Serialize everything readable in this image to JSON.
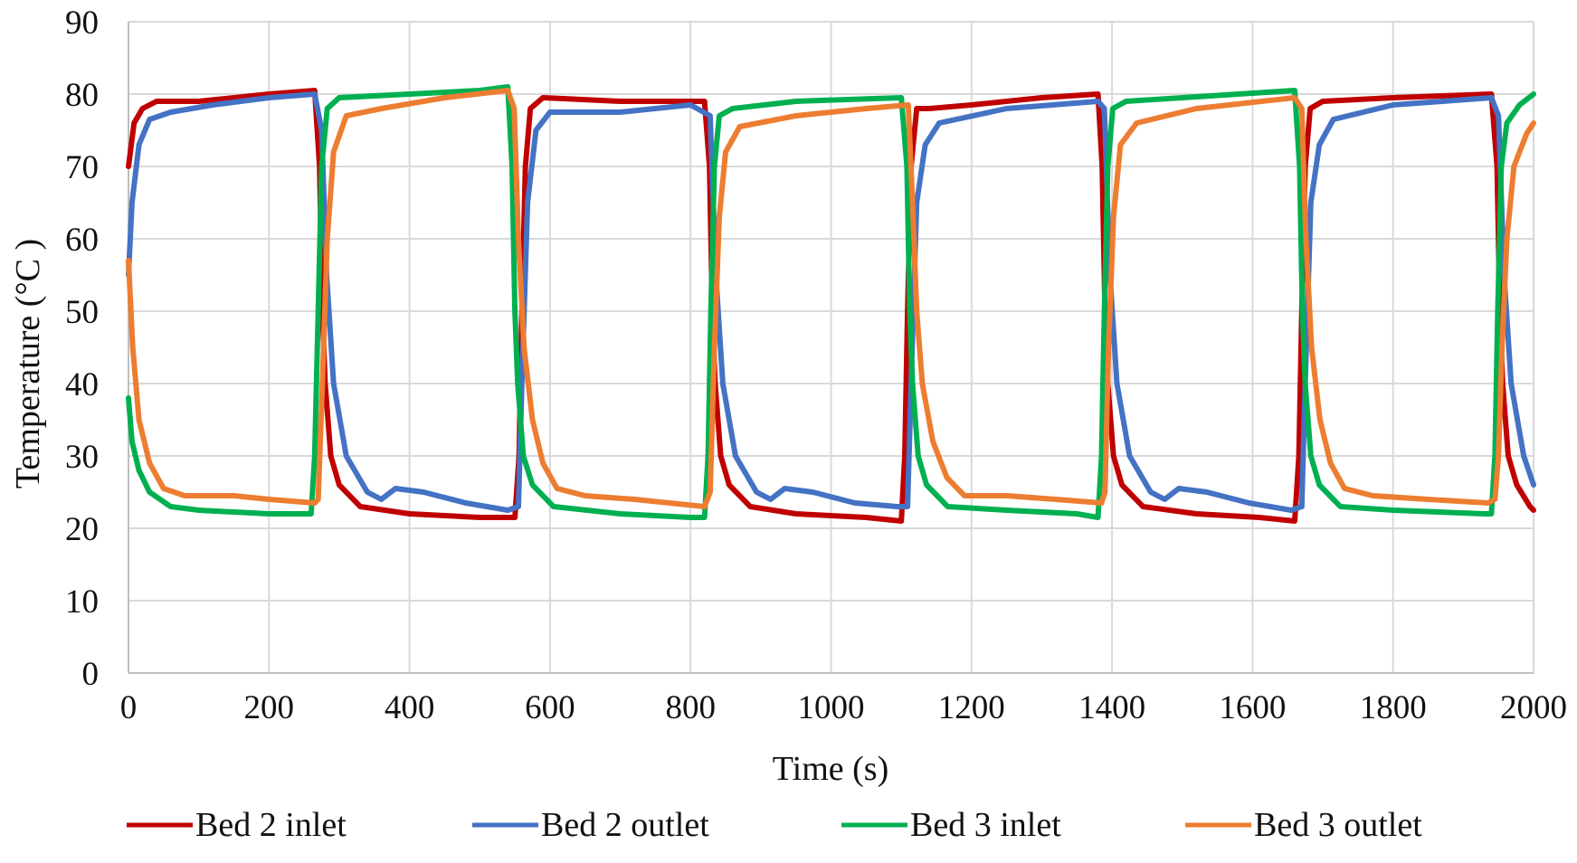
{
  "chart_data": {
    "type": "line",
    "title": "",
    "xlabel": "Time (s)",
    "ylabel": "Temperature  (°C )",
    "xlim": [
      0,
      2000
    ],
    "ylim": [
      0,
      90
    ],
    "xticks": [
      0,
      200,
      400,
      600,
      800,
      1000,
      1200,
      1400,
      1600,
      1800,
      2000
    ],
    "yticks": [
      0,
      10,
      20,
      30,
      40,
      50,
      60,
      70,
      80,
      90
    ],
    "grid": true,
    "legend_position": "bottom",
    "period_s": 279,
    "switch_times_s": [
      0,
      279,
      558,
      837,
      1116,
      1395,
      1674,
      1953
    ],
    "series": [
      {
        "name": "Bed 2 inlet",
        "color": "#C00000",
        "values": [
          [
            0,
            70
          ],
          [
            8,
            76
          ],
          [
            20,
            78
          ],
          [
            40,
            79
          ],
          [
            100,
            79
          ],
          [
            200,
            80
          ],
          [
            265,
            80.5
          ],
          [
            272,
            70
          ],
          [
            276,
            50
          ],
          [
            280,
            40
          ],
          [
            288,
            30
          ],
          [
            300,
            26
          ],
          [
            330,
            23
          ],
          [
            400,
            22
          ],
          [
            500,
            21.5
          ],
          [
            550,
            21.5
          ],
          [
            556,
            30
          ],
          [
            560,
            50
          ],
          [
            565,
            70
          ],
          [
            572,
            78
          ],
          [
            590,
            79.5
          ],
          [
            700,
            79
          ],
          [
            820,
            79
          ],
          [
            827,
            70
          ],
          [
            831,
            50
          ],
          [
            835,
            40
          ],
          [
            843,
            30
          ],
          [
            855,
            26
          ],
          [
            885,
            23
          ],
          [
            950,
            22
          ],
          [
            1050,
            21.5
          ],
          [
            1100,
            21
          ],
          [
            1105,
            30
          ],
          [
            1109,
            50
          ],
          [
            1114,
            70
          ],
          [
            1122,
            78
          ],
          [
            1140,
            78
          ],
          [
            1200,
            78.5
          ],
          [
            1300,
            79.5
          ],
          [
            1380,
            80
          ],
          [
            1386,
            70
          ],
          [
            1390,
            50
          ],
          [
            1394,
            40
          ],
          [
            1402,
            30
          ],
          [
            1414,
            26
          ],
          [
            1444,
            23
          ],
          [
            1520,
            22
          ],
          [
            1610,
            21.5
          ],
          [
            1660,
            21
          ],
          [
            1666,
            30
          ],
          [
            1670,
            50
          ],
          [
            1675,
            70
          ],
          [
            1682,
            78
          ],
          [
            1700,
            79
          ],
          [
            1800,
            79.5
          ],
          [
            1940,
            80
          ],
          [
            1948,
            70
          ],
          [
            1952,
            50
          ],
          [
            1956,
            40
          ],
          [
            1964,
            30
          ],
          [
            1976,
            26
          ],
          [
            1995,
            23
          ],
          [
            2000,
            22.5
          ]
        ]
      },
      {
        "name": "Bed 2 outlet",
        "color": "#4472C4",
        "values": [
          [
            0,
            55
          ],
          [
            5,
            65
          ],
          [
            15,
            73
          ],
          [
            30,
            76.5
          ],
          [
            60,
            77.5
          ],
          [
            120,
            78.5
          ],
          [
            200,
            79.5
          ],
          [
            265,
            80
          ],
          [
            275,
            75
          ],
          [
            282,
            55
          ],
          [
            292,
            40
          ],
          [
            310,
            30
          ],
          [
            340,
            25
          ],
          [
            360,
            24
          ],
          [
            380,
            25.5
          ],
          [
            420,
            25
          ],
          [
            480,
            23.5
          ],
          [
            540,
            22.5
          ],
          [
            555,
            23
          ],
          [
            560,
            40
          ],
          [
            568,
            65
          ],
          [
            580,
            75
          ],
          [
            600,
            77.5
          ],
          [
            700,
            77.5
          ],
          [
            800,
            78.5
          ],
          [
            828,
            77
          ],
          [
            836,
            55
          ],
          [
            846,
            40
          ],
          [
            864,
            30
          ],
          [
            894,
            25
          ],
          [
            914,
            24
          ],
          [
            934,
            25.5
          ],
          [
            974,
            25
          ],
          [
            1034,
            23.5
          ],
          [
            1094,
            23
          ],
          [
            1109,
            23
          ],
          [
            1114,
            40
          ],
          [
            1122,
            65
          ],
          [
            1134,
            73
          ],
          [
            1154,
            76
          ],
          [
            1250,
            78
          ],
          [
            1380,
            79
          ],
          [
            1389,
            78
          ],
          [
            1397,
            55
          ],
          [
            1407,
            40
          ],
          [
            1425,
            30
          ],
          [
            1455,
            25
          ],
          [
            1475,
            24
          ],
          [
            1495,
            25.5
          ],
          [
            1535,
            25
          ],
          [
            1595,
            23.5
          ],
          [
            1655,
            22.5
          ],
          [
            1670,
            23
          ],
          [
            1675,
            40
          ],
          [
            1683,
            65
          ],
          [
            1695,
            73
          ],
          [
            1715,
            76.5
          ],
          [
            1800,
            78.5
          ],
          [
            1940,
            79.5
          ],
          [
            1950,
            77
          ],
          [
            1958,
            55
          ],
          [
            1968,
            40
          ],
          [
            1986,
            30
          ],
          [
            2000,
            26
          ]
        ]
      },
      {
        "name": "Bed 3 inlet",
        "color": "#00B050",
        "values": [
          [
            0,
            38
          ],
          [
            5,
            32
          ],
          [
            15,
            28
          ],
          [
            30,
            25
          ],
          [
            60,
            23
          ],
          [
            100,
            22.5
          ],
          [
            200,
            22
          ],
          [
            260,
            22
          ],
          [
            265,
            30
          ],
          [
            270,
            50
          ],
          [
            275,
            70
          ],
          [
            283,
            78
          ],
          [
            300,
            79.5
          ],
          [
            400,
            80
          ],
          [
            500,
            80.5
          ],
          [
            540,
            81
          ],
          [
            546,
            70
          ],
          [
            550,
            50
          ],
          [
            554,
            40
          ],
          [
            562,
            30
          ],
          [
            575,
            26
          ],
          [
            605,
            23
          ],
          [
            700,
            22
          ],
          [
            800,
            21.5
          ],
          [
            820,
            21.5
          ],
          [
            825,
            30
          ],
          [
            829,
            50
          ],
          [
            834,
            70
          ],
          [
            841,
            77
          ],
          [
            860,
            78
          ],
          [
            950,
            79
          ],
          [
            1100,
            79.5
          ],
          [
            1108,
            70
          ],
          [
            1112,
            50
          ],
          [
            1116,
            40
          ],
          [
            1124,
            30
          ],
          [
            1136,
            26
          ],
          [
            1166,
            23
          ],
          [
            1250,
            22.5
          ],
          [
            1350,
            22
          ],
          [
            1380,
            21.5
          ],
          [
            1385,
            30
          ],
          [
            1389,
            50
          ],
          [
            1394,
            70
          ],
          [
            1401,
            78
          ],
          [
            1420,
            79
          ],
          [
            1500,
            79.5
          ],
          [
            1660,
            80.5
          ],
          [
            1667,
            70
          ],
          [
            1671,
            50
          ],
          [
            1675,
            40
          ],
          [
            1683,
            30
          ],
          [
            1695,
            26
          ],
          [
            1725,
            23
          ],
          [
            1800,
            22.5
          ],
          [
            1930,
            22
          ],
          [
            1940,
            22
          ],
          [
            1945,
            30
          ],
          [
            1949,
            50
          ],
          [
            1954,
            70
          ],
          [
            1962,
            76
          ],
          [
            1980,
            78.5
          ],
          [
            2000,
            80
          ]
        ]
      },
      {
        "name": "Bed 3 outlet",
        "color": "#ED7D31",
        "values": [
          [
            0,
            57
          ],
          [
            6,
            45
          ],
          [
            15,
            35
          ],
          [
            30,
            29
          ],
          [
            50,
            25.5
          ],
          [
            80,
            24.5
          ],
          [
            150,
            24.5
          ],
          [
            200,
            24
          ],
          [
            265,
            23.5
          ],
          [
            270,
            24
          ],
          [
            276,
            40
          ],
          [
            283,
            60
          ],
          [
            292,
            72
          ],
          [
            310,
            77
          ],
          [
            360,
            78
          ],
          [
            450,
            79.5
          ],
          [
            540,
            80.5
          ],
          [
            549,
            78
          ],
          [
            555,
            60
          ],
          [
            563,
            45
          ],
          [
            575,
            35
          ],
          [
            590,
            29
          ],
          [
            610,
            25.5
          ],
          [
            650,
            24.5
          ],
          [
            720,
            24
          ],
          [
            820,
            23
          ],
          [
            828,
            25
          ],
          [
            834,
            45
          ],
          [
            841,
            63
          ],
          [
            850,
            72
          ],
          [
            870,
            75.5
          ],
          [
            950,
            77
          ],
          [
            1050,
            78
          ],
          [
            1110,
            78.5
          ],
          [
            1116,
            65
          ],
          [
            1122,
            50
          ],
          [
            1130,
            40
          ],
          [
            1145,
            32
          ],
          [
            1165,
            27
          ],
          [
            1190,
            24.5
          ],
          [
            1250,
            24.5
          ],
          [
            1320,
            24
          ],
          [
            1385,
            23.5
          ],
          [
            1390,
            25
          ],
          [
            1395,
            45
          ],
          [
            1402,
            63
          ],
          [
            1412,
            73
          ],
          [
            1435,
            76
          ],
          [
            1520,
            78
          ],
          [
            1660,
            79.5
          ],
          [
            1670,
            78
          ],
          [
            1676,
            60
          ],
          [
            1684,
            45
          ],
          [
            1696,
            35
          ],
          [
            1711,
            29
          ],
          [
            1731,
            25.5
          ],
          [
            1771,
            24.5
          ],
          [
            1850,
            24
          ],
          [
            1935,
            23.5
          ],
          [
            1945,
            24
          ],
          [
            1950,
            30
          ],
          [
            1955,
            45
          ],
          [
            1962,
            60
          ],
          [
            1972,
            70
          ],
          [
            1990,
            74.5
          ],
          [
            2000,
            76
          ]
        ]
      }
    ]
  }
}
